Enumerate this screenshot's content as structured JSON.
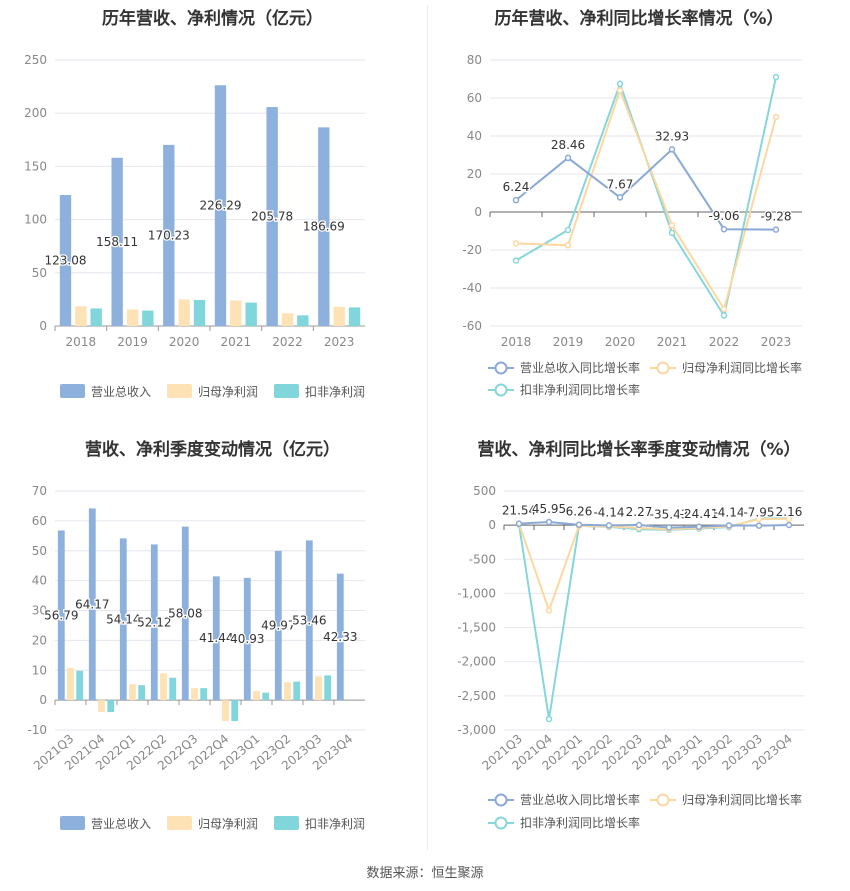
{
  "colors": {
    "revenue": "#8eb0dd",
    "net_profit": "#fde2b6",
    "deducted_profit": "#80d6da",
    "revenue_line": "#8aa9d6",
    "net_line": "#fdd7a0",
    "deducted_line": "#86d6dc",
    "grid": "#e6e6ee",
    "axis_text": "#888888"
  },
  "source_text": "数据来源：恒生聚源",
  "chart_data": [
    {
      "type": "bar",
      "title": "历年营收、净利情况（亿元）",
      "categories": [
        "2018",
        "2019",
        "2020",
        "2021",
        "2022",
        "2023"
      ],
      "ylim": [
        0,
        250
      ],
      "yticks": [
        0,
        50,
        100,
        150,
        200,
        250
      ],
      "grid": true,
      "legend_position": "bottom",
      "series": [
        {
          "name": "营业总收入",
          "values": [
            123.08,
            158.11,
            170.23,
            226.29,
            205.78,
            186.69
          ],
          "labels": [
            "123.08",
            "158.11",
            "170.23",
            "226.29",
            "205.78",
            "186.69"
          ]
        },
        {
          "name": "归母净利润",
          "values": [
            18.5,
            15.5,
            25.0,
            24.0,
            12.0,
            18.0
          ]
        },
        {
          "name": "扣非净利润",
          "values": [
            16.5,
            14.5,
            24.5,
            22.0,
            10.0,
            17.5
          ]
        }
      ]
    },
    {
      "type": "line",
      "title": "历年营收、净利同比增长率情况（%）",
      "categories": [
        "2018",
        "2019",
        "2020",
        "2021",
        "2022",
        "2023"
      ],
      "ylim": [
        -60,
        80
      ],
      "yticks": [
        -60,
        -40,
        -20,
        0,
        20,
        40,
        60,
        80
      ],
      "grid": true,
      "legend_position": "bottom",
      "series": [
        {
          "name": "营业总收入同比增长率",
          "values": [
            6.24,
            28.46,
            7.67,
            32.93,
            -9.06,
            -9.28
          ],
          "labels": [
            "6.24",
            "28.46",
            "7.67",
            "32.93",
            "-9.06",
            "-9.28"
          ]
        },
        {
          "name": "归母净利润同比增长率",
          "values": [
            -16.5,
            -17.5,
            64.0,
            -7.0,
            -51.0,
            50.0
          ]
        },
        {
          "name": "扣非净利润同比增长率",
          "values": [
            -25.5,
            -9.5,
            67.5,
            -11.0,
            -54.5,
            71.0
          ]
        }
      ]
    },
    {
      "type": "bar",
      "title": "营收、净利季度变动情况（亿元）",
      "categories": [
        "2021Q3",
        "2021Q4",
        "2022Q1",
        "2022Q2",
        "2022Q3",
        "2022Q4",
        "2023Q1",
        "2023Q2",
        "2023Q3",
        "2023Q4"
      ],
      "ylim": [
        -10,
        70
      ],
      "yticks": [
        -10,
        0,
        10,
        20,
        30,
        40,
        50,
        60,
        70
      ],
      "grid": true,
      "legend_position": "bottom",
      "series": [
        {
          "name": "营业总收入",
          "values": [
            56.79,
            64.17,
            54.14,
            52.12,
            58.08,
            41.44,
            40.93,
            49.97,
            53.46,
            42.33
          ],
          "labels": [
            "56.79",
            "64.17",
            "54.14",
            "52.12",
            "58.08",
            "41.44",
            "40.93",
            "49.97",
            "53.46",
            "42.33"
          ]
        },
        {
          "name": "归母净利润",
          "values": [
            10.8,
            -4.0,
            5.3,
            9.0,
            4.0,
            -7.0,
            3.0,
            6.0,
            8.0,
            0
          ]
        },
        {
          "name": "扣非净利润",
          "values": [
            9.8,
            -4.0,
            5.0,
            7.5,
            4.0,
            -7.0,
            2.5,
            6.2,
            8.3,
            0
          ]
        }
      ]
    },
    {
      "type": "line",
      "title": "营收、净利同比增长率季度变动情况（%）",
      "categories": [
        "2021Q3",
        "2021Q4",
        "2022Q1",
        "2022Q2",
        "2022Q3",
        "2022Q4",
        "2023Q1",
        "2023Q2",
        "2023Q3",
        "2023Q4"
      ],
      "ylim": [
        -3000,
        500
      ],
      "yticks": [
        -3000,
        -2500,
        -2000,
        -1500,
        -1000,
        -500,
        0,
        500
      ],
      "ytick_labels": [
        "-3,000",
        "-2,500",
        "-2,000",
        "-1,500",
        "-1,000",
        "-500",
        "0",
        "500"
      ],
      "grid": true,
      "legend_position": "bottom",
      "series": [
        {
          "name": "营业总收入同比增长率",
          "values": [
            21.54,
            45.95,
            6.26,
            -4.14,
            2.27,
            -35.43,
            -24.41,
            -4.14,
            -7.95,
            2.16
          ],
          "labels": [
            "21.54",
            "45.95",
            "6.26",
            "-4.14",
            "2.27",
            "-35.43",
            "-24.41",
            "-4.14",
            "-7.95",
            "2.16"
          ]
        },
        {
          "name": "归母净利润同比增长率",
          "values": [
            20,
            -1250,
            -10,
            -20,
            -40,
            -60,
            -40,
            -20,
            90,
            90
          ]
        },
        {
          "name": "扣非净利润同比增长率",
          "values": [
            10,
            -2840,
            -10,
            -25,
            -60,
            -70,
            -50,
            -30,
            100,
            100
          ]
        }
      ]
    }
  ]
}
